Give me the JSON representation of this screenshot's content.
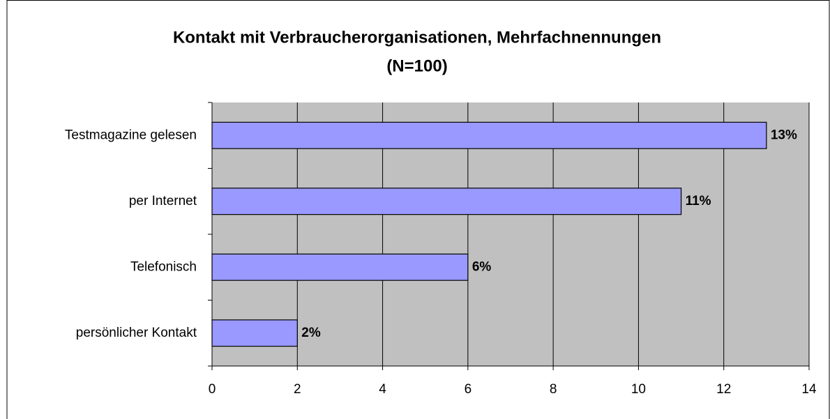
{
  "chart_data": {
    "type": "bar",
    "orientation": "horizontal",
    "title": [
      "Kontakt mit Verbraucherorganisationen, Mehrfachnennungen",
      "(N=100)"
    ],
    "categories": [
      "Testmagazine gelesen",
      "per Internet",
      "Telefonisch",
      "persönlicher Kontakt"
    ],
    "values": [
      13,
      11,
      6,
      2
    ],
    "value_labels": [
      "13%",
      "11%",
      "6%",
      "2%"
    ],
    "color": "#9999ff",
    "xlim": [
      0,
      14
    ],
    "xticks": [
      0,
      2,
      4,
      6,
      8,
      10,
      12,
      14
    ],
    "grid": true
  }
}
